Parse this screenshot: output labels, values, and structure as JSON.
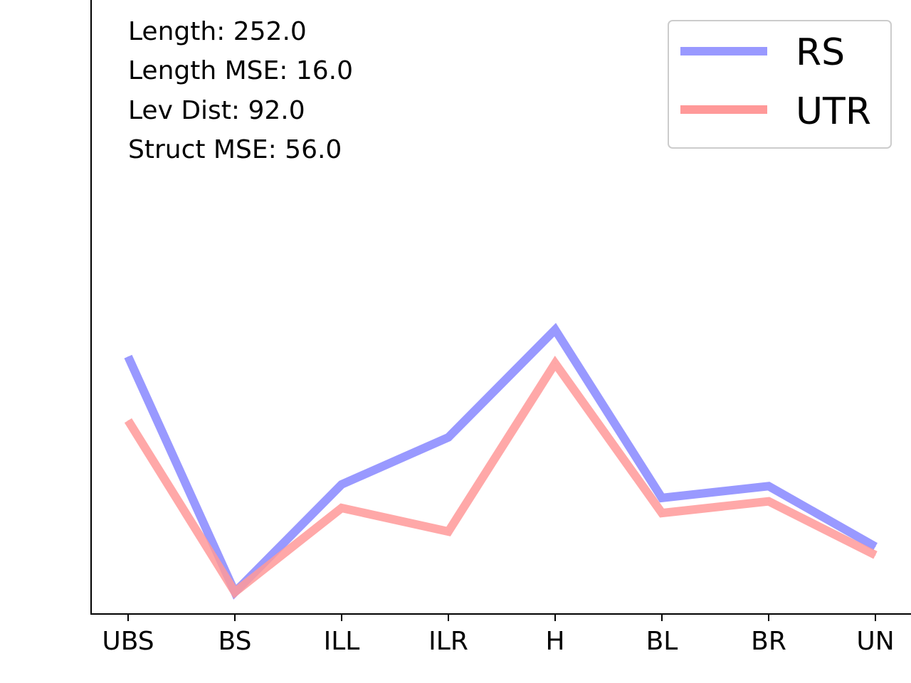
{
  "chart_data": {
    "type": "line",
    "title": "",
    "xlabel": "",
    "ylabel": "",
    "categories": [
      "UBS",
      "BS",
      "ILL",
      "ILR",
      "H",
      "BL",
      "BR",
      "UN"
    ],
    "series": [
      {
        "name": "RS",
        "values": [
          0.72,
          0.02,
          0.34,
          0.48,
          0.8,
          0.3,
          0.335,
          0.155
        ],
        "color": "#9999ff"
      },
      {
        "name": "UTR",
        "values": [
          0.53,
          0.02,
          0.27,
          0.2,
          0.7,
          0.255,
          0.29,
          0.13
        ],
        "color": "#ff9999"
      }
    ],
    "ylim": [
      -0.045,
      1.78
    ],
    "y_ticks_visible": false,
    "grid": false,
    "legend": {
      "placement": "upper right",
      "entries": [
        "RS",
        "UTR"
      ]
    },
    "annotations": [
      "Length: 252.0",
      "Length MSE: 16.0",
      "Lev Dist: 92.0",
      "Struct MSE: 56.0"
    ]
  }
}
